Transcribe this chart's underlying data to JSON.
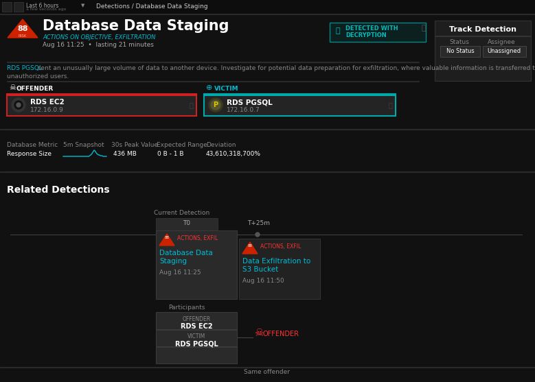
{
  "bg_color": "#111111",
  "nav_bg": "#0d0d0d",
  "panel_bg": "#1e1e1e",
  "card_bg": "#252525",
  "card_bg2": "#2a2a2a",
  "text_white": "#ffffff",
  "text_gray": "#888888",
  "text_gray2": "#aaaaaa",
  "text_cyan": "#00bcd4",
  "text_red": "#ff3333",
  "accent_red": "#cc2200",
  "border_red": "#cc2222",
  "border_teal": "#00aaaa",
  "breadcrumb": "Detections / Database Data Staging",
  "main_title": "Database Data Staging",
  "subtitle_tag": "ACTIONS ON OBJECTIVE, EXFILTRATION",
  "subtitle_date": "Aug 16 11:25  •  lasting 21 minutes",
  "risk_score": "88",
  "risk_label": "RISK",
  "desc_link": "RDS PGSQL",
  "desc_rest": " sent an unusually large volume of data to another device. Investigate for potential data preparation for exfiltration, where valuable information is transferred to",
  "desc_line2": "unauthorized users.",
  "detected_line1": "DETECTED WITH",
  "detected_line2": "DECRYPTION",
  "track_title": "Track Detection",
  "status_label": "Status",
  "assignee_label": "Assignee",
  "status_val": "No Status",
  "assignee_val": "Unassigned",
  "offender_label": "OFFENDER",
  "victim_label": "VICTIM",
  "offender_name": "RDS EC2",
  "offender_ip": "172.16.0.9",
  "victim_name": "RDS PGSQL",
  "victim_ip": "172.16.0.7",
  "db_metric_col": "Database Metric",
  "snapshot_col": "5m Snapshot",
  "peak_col": "30s Peak Value",
  "range_col": "Expected Range",
  "deviation_col": "Deviation",
  "metric_row": "Response Size",
  "peak_val": "436 MB",
  "range_val": "0 B - 1 B",
  "deviation_val": "43,610,318,700%",
  "related_title": "Related Detections",
  "current_detection_label": "Current Detection",
  "t0_label": "T0",
  "t25_label": "T+25m",
  "card1_tag": "ACTIONS, EXFIL",
  "card1_title_l1": "Database Data",
  "card1_title_l2": "Staging",
  "card1_date": "Aug 16 11:25",
  "card2_tag": "ACTIONS, EXFIL",
  "card2_title_l1": "Data Exfiltration to",
  "card2_title_l2": "S3 Bucket",
  "card2_date": "Aug 16 11:50",
  "participants_label": "Participants",
  "part_offender_label": "OFFENDER",
  "part_offender_val": "RDS EC2",
  "part_victim_label": "VICTIM",
  "part_victim_val": "RDS PGSQL",
  "same_offender_label": "Same offender",
  "offender_icon_label": "OFFENDER"
}
